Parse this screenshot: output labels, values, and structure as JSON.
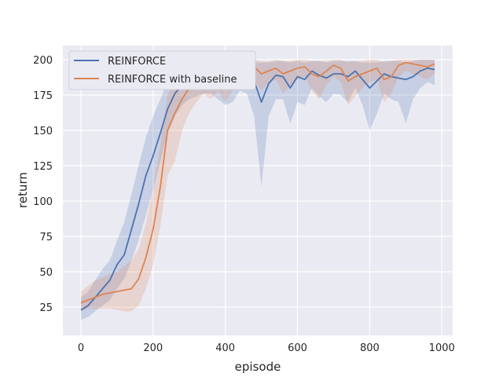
{
  "chart_data": {
    "type": "line",
    "title": "",
    "xlabel": "episode",
    "ylabel": "return",
    "xlim": [
      -50,
      1030
    ],
    "ylim": [
      5,
      210
    ],
    "xticks": [
      0,
      200,
      400,
      600,
      800,
      1000
    ],
    "yticks": [
      25,
      50,
      75,
      100,
      125,
      150,
      175,
      200
    ],
    "grid": true,
    "legend_position": "top-left",
    "x": [
      0,
      20,
      40,
      60,
      80,
      100,
      120,
      140,
      160,
      180,
      200,
      220,
      240,
      260,
      280,
      300,
      320,
      340,
      360,
      380,
      400,
      420,
      440,
      460,
      480,
      500,
      520,
      540,
      560,
      580,
      600,
      620,
      640,
      660,
      680,
      700,
      720,
      740,
      760,
      780,
      800,
      820,
      840,
      860,
      880,
      900,
      920,
      940,
      960,
      980
    ],
    "series": [
      {
        "name": "REINFORCE",
        "color": "#4c72b0",
        "values": [
          23,
          26,
          32,
          38,
          44,
          55,
          62,
          80,
          98,
          118,
          132,
          148,
          165,
          176,
          182,
          186,
          188,
          189,
          189,
          187,
          185,
          190,
          193,
          192,
          185,
          170,
          183,
          189,
          188,
          180,
          188,
          186,
          192,
          189,
          187,
          190,
          190,
          188,
          192,
          186,
          180,
          185,
          190,
          188,
          187,
          186,
          188,
          192,
          194,
          193
        ],
        "lower": [
          16,
          18,
          22,
          26,
          30,
          38,
          45,
          58,
          72,
          90,
          108,
          128,
          148,
          160,
          168,
          172,
          174,
          176,
          176,
          172,
          168,
          170,
          178,
          176,
          160,
          110,
          160,
          172,
          172,
          155,
          170,
          168,
          180,
          174,
          170,
          176,
          175,
          170,
          180,
          168,
          150,
          162,
          176,
          172,
          170,
          155,
          172,
          180,
          184,
          182
        ],
        "upper": [
          32,
          36,
          44,
          52,
          58,
          72,
          85,
          105,
          125,
          145,
          160,
          172,
          185,
          192,
          195,
          197,
          198,
          198,
          198,
          198,
          197,
          198,
          199,
          199,
          198,
          198,
          198,
          199,
          199,
          198,
          199,
          198,
          199,
          199,
          198,
          199,
          199,
          199,
          199,
          198,
          198,
          198,
          199,
          199,
          199,
          198,
          199,
          200,
          200,
          200
        ]
      },
      {
        "name": "REINFORCE with baseline",
        "color": "#dd8452",
        "values": [
          28,
          30,
          32,
          34,
          35,
          36,
          37,
          38,
          45,
          60,
          80,
          110,
          150,
          162,
          172,
          180,
          185,
          188,
          186,
          189,
          184,
          190,
          194,
          196,
          195,
          190,
          192,
          194,
          190,
          192,
          194,
          195,
          190,
          188,
          192,
          196,
          194,
          185,
          188,
          190,
          192,
          194,
          186,
          188,
          196,
          198,
          197,
          196,
          195,
          197
        ],
        "lower": [
          22,
          24,
          24,
          24,
          24,
          23,
          22,
          22,
          26,
          38,
          55,
          82,
          118,
          128,
          150,
          162,
          170,
          176,
          172,
          178,
          170,
          178,
          186,
          188,
          186,
          178,
          184,
          186,
          176,
          182,
          186,
          188,
          178,
          172,
          182,
          188,
          184,
          168,
          174,
          180,
          184,
          186,
          170,
          176,
          188,
          192,
          190,
          188,
          186,
          190
        ],
        "upper": [
          36,
          40,
          44,
          46,
          48,
          50,
          54,
          58,
          66,
          84,
          108,
          140,
          175,
          185,
          192,
          196,
          198,
          199,
          199,
          199,
          198,
          199,
          200,
          200,
          200,
          199,
          199,
          200,
          199,
          199,
          200,
          200,
          199,
          199,
          199,
          200,
          200,
          198,
          199,
          199,
          200,
          200,
          198,
          199,
          200,
          200,
          200,
          200,
          200,
          200
        ]
      }
    ]
  }
}
